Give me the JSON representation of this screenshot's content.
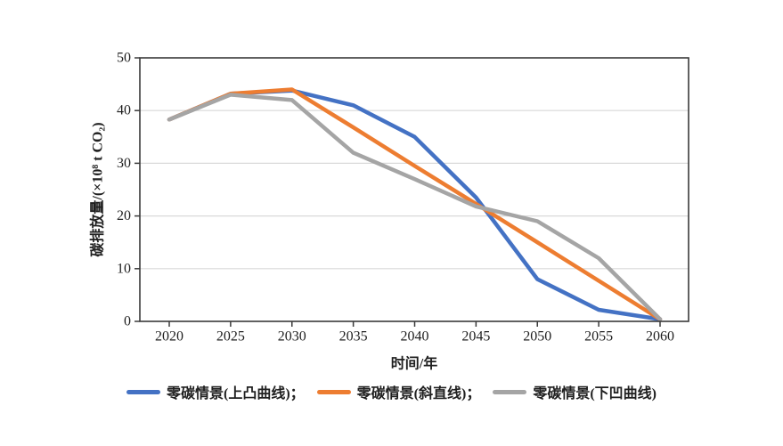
{
  "chart_data": {
    "type": "line",
    "title": "",
    "xlabel": "时间/年",
    "ylabel": "碳排放量/(×10⁸ t CO₂)",
    "categories": [
      "2020",
      "2025",
      "2030",
      "2035",
      "2040",
      "2045",
      "2050",
      "2055",
      "2060"
    ],
    "series": [
      {
        "name": "零碳情景(上凸曲线)",
        "color": "#4472C4",
        "values": [
          38.3,
          43.2,
          43.8,
          41.0,
          35.0,
          23.5,
          8.0,
          2.2,
          0.4
        ]
      },
      {
        "name": "零碳情景(斜直线)",
        "color": "#ED7D31",
        "values": [
          38.3,
          43.2,
          44.0,
          36.8,
          29.5,
          22.3,
          15.0,
          7.7,
          0.4
        ]
      },
      {
        "name": "零碳情景(下凹曲线)",
        "color": "#A5A5A5",
        "values": [
          38.3,
          43.0,
          42.0,
          32.0,
          27.0,
          21.8,
          19.0,
          12.0,
          0.4
        ]
      }
    ],
    "ylim": [
      0,
      50
    ],
    "yticks": [
      0,
      10,
      20,
      30,
      40,
      50
    ],
    "grid": "horizontal-only",
    "legend_position": "bottom",
    "legend": [
      {
        "label": "零碳情景(上凸曲线)；",
        "color": "#4472C4"
      },
      {
        "label": "零碳情景(斜直线)；",
        "color": "#ED7D31"
      },
      {
        "label": "零碳情景(下凹曲线)",
        "color": "#A5A5A5"
      }
    ],
    "colors": {
      "axis": "#3a3a3a",
      "grid": "#d9d9d9",
      "text": "#1f1f1f",
      "background": "#ffffff"
    }
  }
}
